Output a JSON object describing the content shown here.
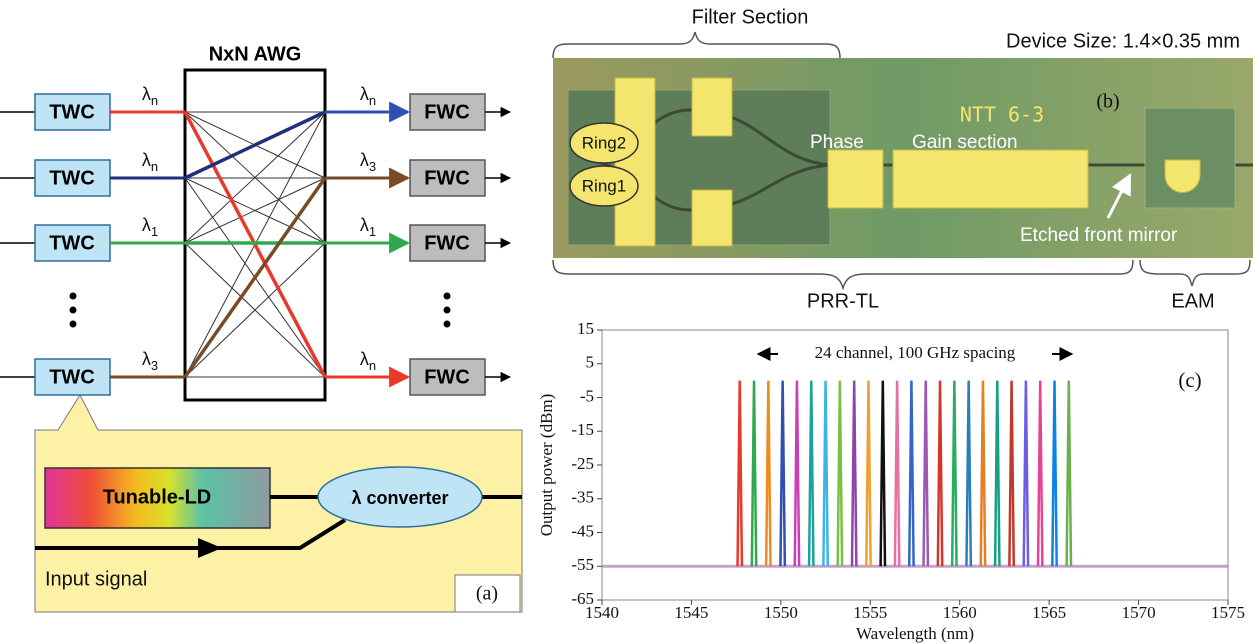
{
  "diagram_a": {
    "awg_label": "NxN AWG",
    "inputs": [
      {
        "label": "TWC",
        "wavelength": {
          "base": "λ",
          "sub": "n"
        },
        "color": "#e8392b"
      },
      {
        "label": "TWC",
        "wavelength": {
          "base": "λ",
          "sub": "n"
        },
        "color": "#1f2f7a"
      },
      {
        "label": "TWC",
        "wavelength": {
          "base": "λ",
          "sub": "1"
        },
        "color": "#2fa84f"
      },
      {
        "label": "TWC",
        "wavelength": {
          "base": "λ",
          "sub": "3"
        },
        "color": "#7a4a24"
      }
    ],
    "outputs": [
      {
        "label": "FWC",
        "wavelength": {
          "base": "λ",
          "sub": "n"
        },
        "color": "#2f4fb5"
      },
      {
        "label": "FWC",
        "wavelength": {
          "base": "λ",
          "sub": "3"
        },
        "color": "#7a4a24"
      },
      {
        "label": "FWC",
        "wavelength": {
          "base": "λ",
          "sub": "1"
        },
        "color": "#2fa84f"
      },
      {
        "label": "FWC",
        "wavelength": {
          "base": "λ",
          "sub": "n"
        },
        "color": "#e8392b"
      }
    ],
    "callout": {
      "laser": "Tunable-LD",
      "converter": "λ converter",
      "input": "Input signal",
      "panel": "(a)"
    }
  },
  "photo_b": {
    "filter_section": "Filter Section",
    "device_size": "Device Size: 1.4×0.35 mm",
    "chip_label": "NTT 6-3",
    "panel": "(b)",
    "ring2": "Ring2",
    "ring1": "Ring1",
    "phase": "Phase",
    "gain": "Gain section",
    "mirror": "Etched front mirror",
    "prr_tl": "PRR-TL",
    "eam": "EAM"
  },
  "chart_data": {
    "type": "spectrum",
    "annotation": "24 channel, 100 GHz spacing",
    "panel": "(c)",
    "x_label": "Wavelength (nm)",
    "y_label": "Output power (dBm)",
    "x": [
      1547.7,
      1548.5,
      1549.3,
      1550.1,
      1550.9,
      1551.7,
      1552.5,
      1553.3,
      1554.1,
      1554.9,
      1555.7,
      1556.5,
      1557.3,
      1558.1,
      1558.9,
      1559.7,
      1560.5,
      1561.3,
      1562.1,
      1562.9,
      1563.7,
      1564.5,
      1565.3,
      1566.1
    ],
    "values": [
      0,
      0,
      0,
      0,
      0,
      0,
      0,
      0,
      0,
      0,
      0,
      0,
      0,
      0,
      0,
      0,
      0,
      0,
      0,
      0,
      0,
      0,
      0,
      0
    ],
    "colors": [
      "#e8392b",
      "#2fa84f",
      "#f08a1c",
      "#2f4fb5",
      "#c83fb8",
      "#1aa39a",
      "#3cb4e6",
      "#77c043",
      "#8e44ad",
      "#f0a030",
      "#111111",
      "#e86fa0",
      "#3366cc",
      "#9b59b6",
      "#d4372a",
      "#27ae60",
      "#2980b9",
      "#e67e22",
      "#16a085",
      "#c0392b",
      "#6c5ce7",
      "#e84393",
      "#0984e3",
      "#6ab04c"
    ],
    "noise_floor": -55,
    "xlim": [
      1540,
      1575
    ],
    "xticks": [
      1540,
      1545,
      1550,
      1555,
      1560,
      1565,
      1570,
      1575
    ],
    "ylim": [
      -65,
      15
    ],
    "yticks": [
      15,
      5,
      -5,
      -15,
      -25,
      -35,
      -45,
      -55,
      -65
    ]
  }
}
